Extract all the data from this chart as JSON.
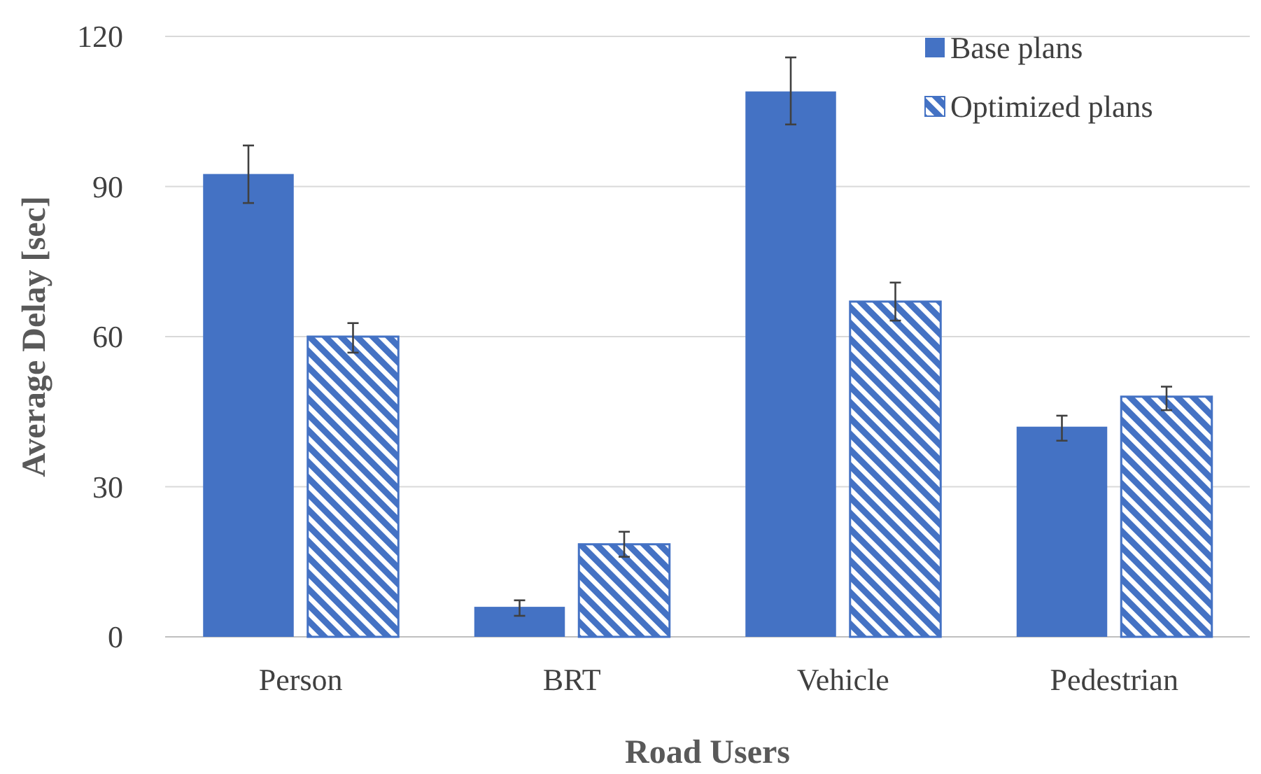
{
  "chart_data": {
    "type": "bar",
    "xlabel": "Road Users",
    "ylabel": "Average Delay [sec]",
    "categories": [
      "Person",
      "BRT",
      "Vehicle",
      "Pedestrian"
    ],
    "series": [
      {
        "name": "Base plans",
        "color": "#4472c4",
        "values": [
          92.5,
          6,
          109,
          42
        ],
        "errors": [
          [
            86.7,
            98.2
          ],
          [
            4.2,
            7.3
          ],
          [
            102.4,
            115.8
          ],
          [
            39.2,
            44.2
          ]
        ]
      },
      {
        "name": "Optimized plans",
        "color": "#4472c4",
        "values": [
          60,
          18.5,
          67,
          48
        ],
        "errors": [
          [
            56.8,
            62.7
          ],
          [
            16,
            21
          ],
          [
            63.2,
            70.8
          ],
          [
            45.3,
            50
          ]
        ]
      }
    ],
    "ylim": [
      0,
      120
    ],
    "yticks": [
      0,
      30,
      60,
      90,
      120
    ],
    "grid": "y",
    "legend": "top right"
  }
}
